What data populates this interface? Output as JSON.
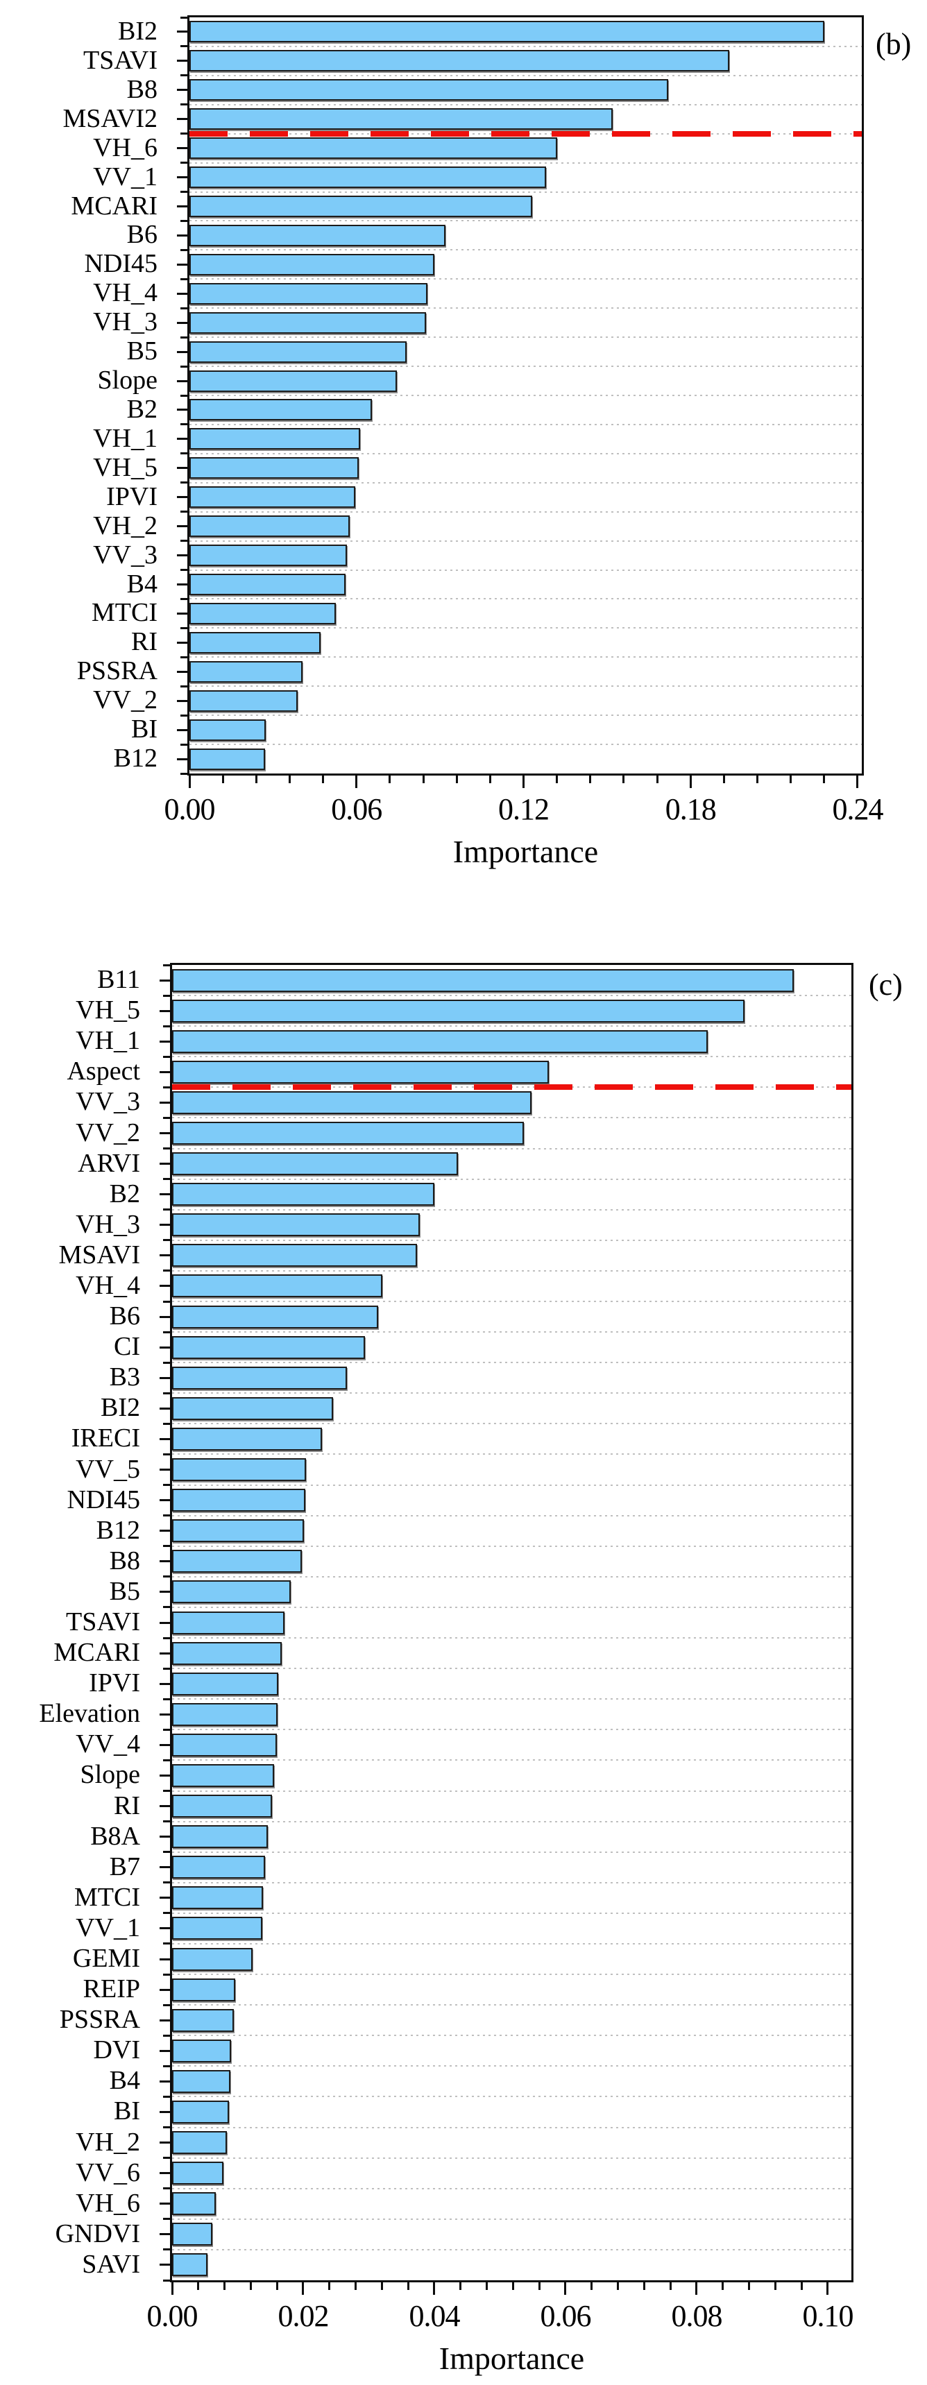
{
  "figure": {
    "background": "#ffffff",
    "bar_fill_color": "#7ECBF8",
    "bar_border_color": "#1c1c1c",
    "grid_color": "#bfbfbf",
    "threshold_color": "#ee100c"
  },
  "chart_data": [
    {
      "type": "bar",
      "orientation": "horizontal",
      "panel_label": "(b)",
      "xlabel": "Importance",
      "categories": [
        "BI2",
        "TSAVI",
        "B8",
        "MSAVI2",
        "VH_6",
        "VV_1",
        "MCARI",
        "B6",
        "NDI45",
        "VH_4",
        "VH_3",
        "B5",
        "Slope",
        "B2",
        "VH_1",
        "VH_5",
        "IPVI",
        "VH_2",
        "VV_3",
        "B4",
        "MTCI",
        "RI",
        "PSSRA",
        "VV_2",
        "BI",
        "B12"
      ],
      "values": [
        0.228,
        0.194,
        0.172,
        0.152,
        0.132,
        0.128,
        0.123,
        0.092,
        0.088,
        0.0855,
        0.085,
        0.078,
        0.0745,
        0.0655,
        0.0612,
        0.0608,
        0.0595,
        0.0575,
        0.0565,
        0.056,
        0.0525,
        0.047,
        0.0405,
        0.039,
        0.0275,
        0.0272
      ],
      "xlim": [
        0,
        0.24
      ],
      "x_tick_labels": [
        "0.00",
        "0.06",
        "0.12",
        "0.18",
        "0.24"
      ],
      "x_tick_values": [
        0,
        0.06,
        0.12,
        0.18,
        0.24
      ],
      "x_minor_step": 0.012,
      "grid": "dotted horizontal lines at category boundaries",
      "legend": "none",
      "threshold_line": {
        "after_index": 4,
        "color": "#ee100c",
        "style": "dashed"
      }
    },
    {
      "type": "bar",
      "orientation": "horizontal",
      "panel_label": "(c)",
      "xlabel": "Importance",
      "categories": [
        "B11",
        "VH_5",
        "VH_1",
        "Aspect",
        "VV_3",
        "VV_2",
        "ARVI",
        "B2",
        "VH_3",
        "MSAVI",
        "VH_4",
        "B6",
        "CI",
        "B3",
        "BI2",
        "IRECI",
        "VV_5",
        "NDI45",
        "B12",
        "B8",
        "B5",
        "TSAVI",
        "MCARI",
        "IPVI",
        "Elevation",
        "VV_4",
        "Slope",
        "RI",
        "B8A",
        "B7",
        "MTCI",
        "VV_1",
        "GEMI",
        "REIP",
        "PSSRA",
        "DVI",
        "B4",
        "BI",
        "VH_2",
        "VV_6",
        "VH_6",
        "GNDVI",
        "SAVI"
      ],
      "values": [
        0.0948,
        0.0873,
        0.0817,
        0.0575,
        0.0548,
        0.0536,
        0.0436,
        0.04,
        0.0378,
        0.0374,
        0.0321,
        0.0314,
        0.0294,
        0.0267,
        0.0246,
        0.0229,
        0.0204,
        0.0203,
        0.0201,
        0.0198,
        0.0181,
        0.0171,
        0.0167,
        0.0162,
        0.0161,
        0.016,
        0.0156,
        0.0152,
        0.0146,
        0.0142,
        0.0139,
        0.0138,
        0.0123,
        0.0096,
        0.0094,
        0.009,
        0.0089,
        0.0087,
        0.0084,
        0.0078,
        0.0067,
        0.0061,
        0.0054
      ],
      "xlim": [
        0,
        0.1
      ],
      "x_tick_labels": [
        "0.00",
        "0.02",
        "0.04",
        "0.06",
        "0.08",
        "0.10"
      ],
      "x_tick_values": [
        0,
        0.02,
        0.04,
        0.06,
        0.08,
        0.1
      ],
      "x_minor_step": 0.004,
      "grid": "dotted horizontal lines at category boundaries",
      "legend": "none",
      "threshold_line": {
        "after_index": 4,
        "color": "#ee100c",
        "style": "dashed"
      }
    }
  ]
}
